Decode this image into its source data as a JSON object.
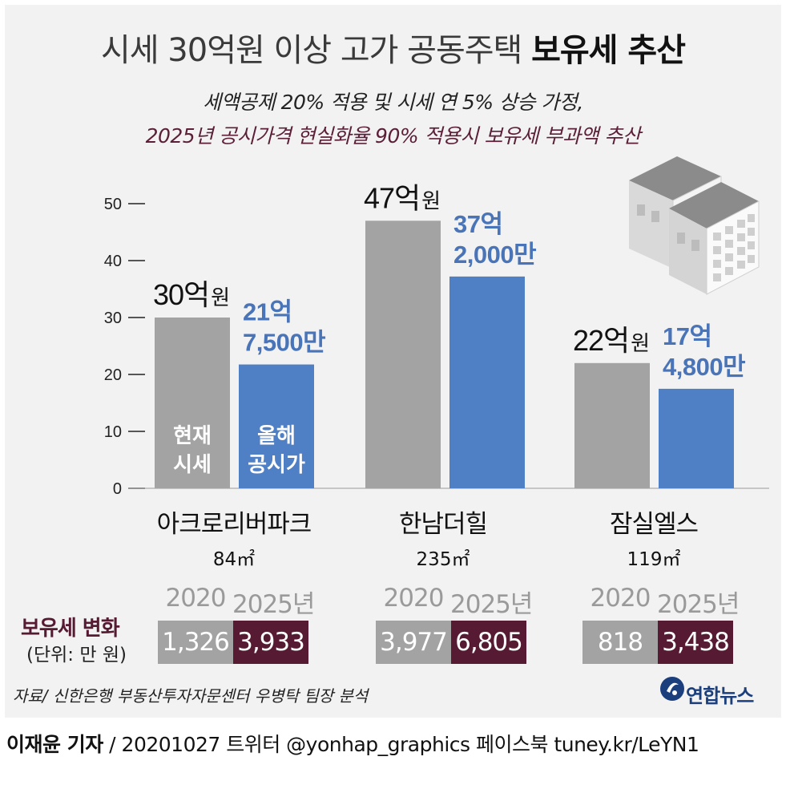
{
  "title": {
    "main": "시세 30억원 이상 고가 공동주택 ",
    "bold": "보유세 추산"
  },
  "subtitle": {
    "line1": "세액공제 20% 적용 및 시세 연 5% 상승 가정,",
    "line2": "2025년 공시가격 현실화율 90% 적용시 보유세 부과액 추산"
  },
  "colors": {
    "market": "#a3a3a3",
    "official": "#4f7fc4",
    "official_text": "#4a74b8",
    "tax_2025": "#561a32",
    "tax_2020": "#a3a3a3"
  },
  "chart_data": {
    "type": "bar",
    "ylim": [
      0,
      50
    ],
    "yticks": [
      "0",
      "10",
      "20",
      "30",
      "40",
      "50"
    ],
    "categories": [
      "아크로리버파크",
      "한남더힐",
      "잠실엘스"
    ],
    "areas": [
      "84㎡",
      "235㎡",
      "119㎡"
    ],
    "series": [
      {
        "name": "현재 시세",
        "label_lines": [
          "현재",
          "시세"
        ],
        "values": [
          30,
          47,
          22
        ],
        "value_labels": [
          "30억",
          "47억",
          "22억"
        ],
        "unit": "원"
      },
      {
        "name": "올해 공시가",
        "label_lines": [
          "올해",
          "공시가"
        ],
        "values": [
          21.75,
          37.2,
          17.48
        ],
        "value_labels": [
          [
            "21억",
            "7,500만"
          ],
          [
            "37억",
            "2,000만"
          ],
          [
            "17억",
            "4,800만"
          ]
        ]
      }
    ]
  },
  "tax": {
    "label": "보유세 변화",
    "unit": "(단위: 만 원)",
    "years": [
      "2020",
      "2025년"
    ],
    "rows": [
      {
        "y2020": "1,326",
        "y2025": "3,933"
      },
      {
        "y2020": "3,977",
        "y2025": "6,805"
      },
      {
        "y2020": "818",
        "y2025": "3,438"
      }
    ]
  },
  "source": "자료/ 신한은행 부동산투자자문센터 우병탁 팀장 분석",
  "logo": {
    "icon": "yonhap-logo-icon",
    "text": "연합뉴스"
  },
  "footer": {
    "reporter": "이재윤 기자",
    "rest": " / 20201027   트위터 @yonhap_graphics  페이스북 tuney.kr/LeYN1"
  }
}
